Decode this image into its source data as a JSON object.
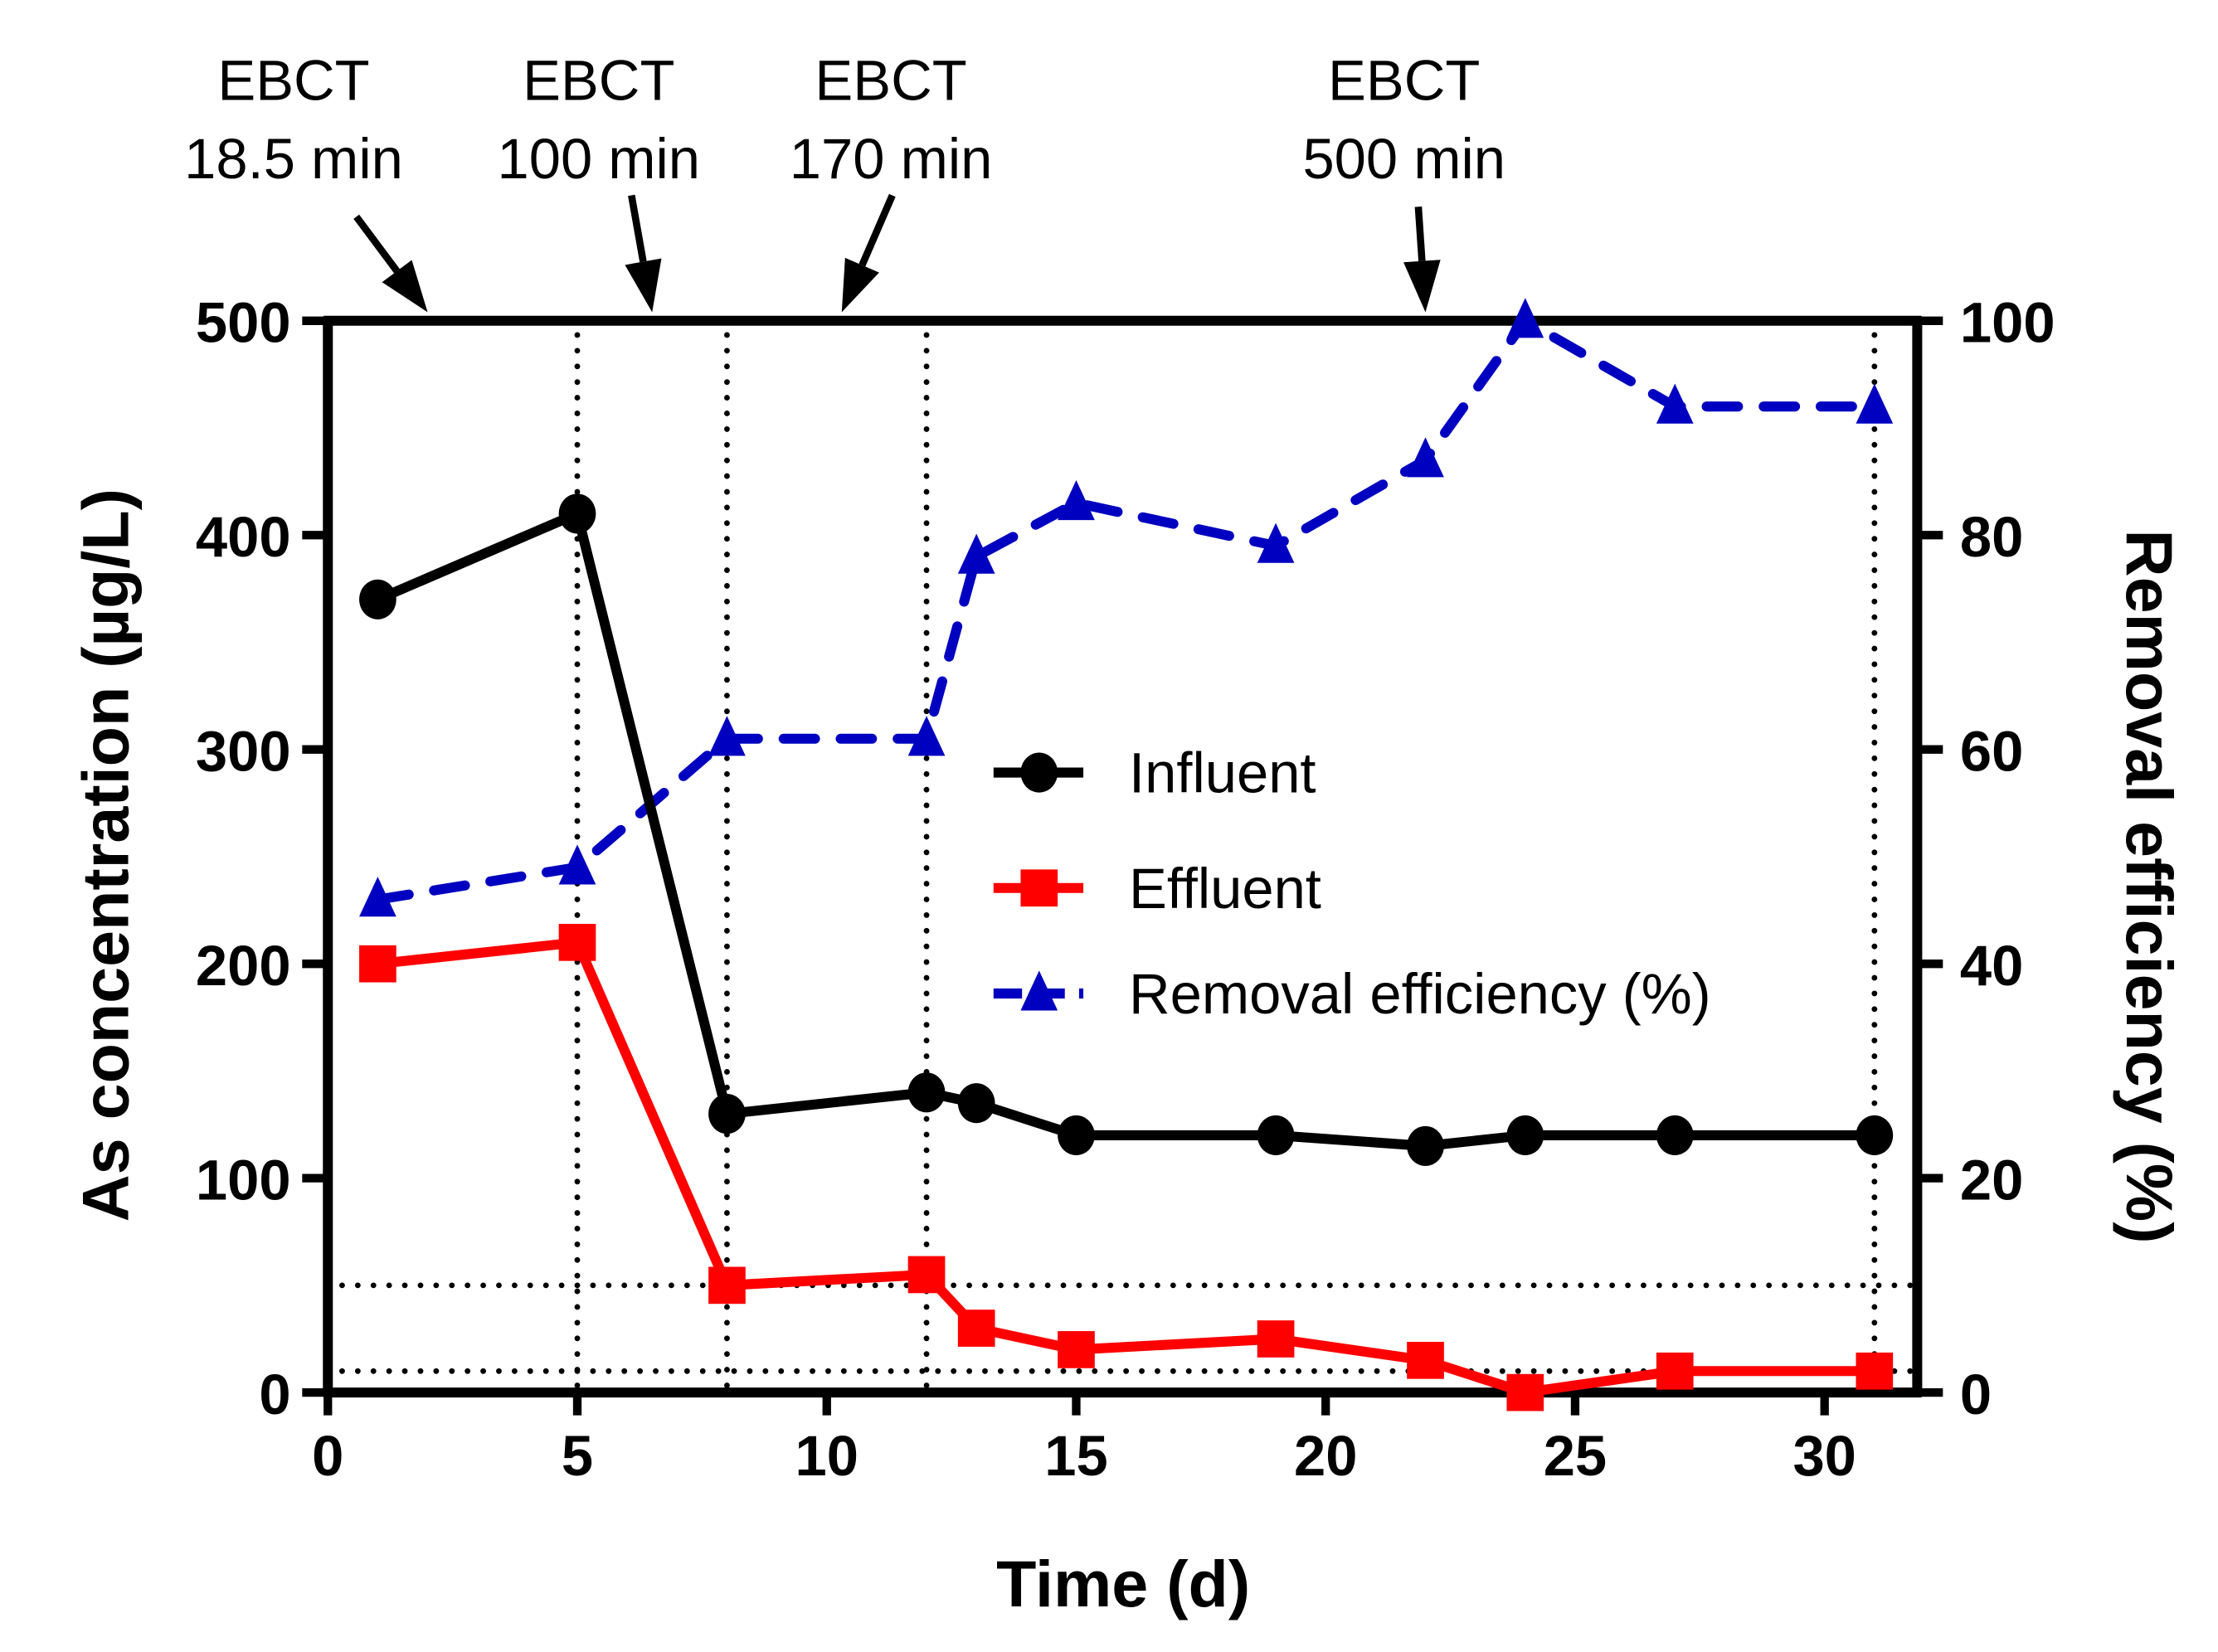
{
  "chart_data": {
    "type": "line",
    "xlabel": "Time (d)",
    "ylabel": "As concentration (µg/L)",
    "y2label": "Removal efficiency (%)",
    "xlim": [
      0,
      32
    ],
    "ylim": [
      0,
      500
    ],
    "y2lim": [
      0,
      100
    ],
    "xticks": [
      "0",
      "5",
      "10",
      "15",
      "20",
      "25",
      "30"
    ],
    "yticks": [
      "0",
      "100",
      "200",
      "300",
      "400",
      "500"
    ],
    "y2ticks": [
      "0",
      "20",
      "40",
      "60",
      "80",
      "100"
    ],
    "legend_position": "center-right",
    "series": [
      {
        "name": "Influent",
        "axis": "left",
        "color": "#000000",
        "marker": "circle",
        "dash": "solid",
        "x": [
          1,
          5,
          8,
          12,
          13,
          15,
          19,
          22,
          24,
          27,
          31
        ],
        "y": [
          370,
          410,
          130,
          140,
          135,
          120,
          120,
          115,
          120,
          120,
          120
        ]
      },
      {
        "name": "Effluent",
        "axis": "left",
        "color": "#ff0000",
        "marker": "square",
        "dash": "solid",
        "x": [
          1,
          5,
          8,
          12,
          13,
          15,
          19,
          22,
          24,
          27,
          31
        ],
        "y": [
          200,
          210,
          50,
          55,
          30,
          20,
          25,
          15,
          0,
          10,
          10
        ]
      },
      {
        "name": "Removal efficiency (%)",
        "axis": "right",
        "color": "#0000c0",
        "marker": "triangle",
        "dash": "dashed",
        "x": [
          1,
          5,
          8,
          12,
          13,
          15,
          19,
          22,
          24,
          27,
          31
        ],
        "y": [
          46,
          49,
          61,
          61,
          78,
          83,
          79,
          87,
          100,
          92,
          92
        ]
      }
    ],
    "reference_lines": {
      "vertical_x": [
        5,
        8,
        12,
        31
      ],
      "horizontal_y": [
        50,
        10
      ]
    },
    "annotations": [
      {
        "line1": "EBCT",
        "line2": "18.5 min",
        "x": 2
      },
      {
        "line1": "EBCT",
        "line2": "100 min",
        "x": 6.5
      },
      {
        "line1": "EBCT",
        "line2": "170 min",
        "x": 10.3
      },
      {
        "line1": "EBCT",
        "line2": "500 min",
        "x": 22
      }
    ]
  }
}
